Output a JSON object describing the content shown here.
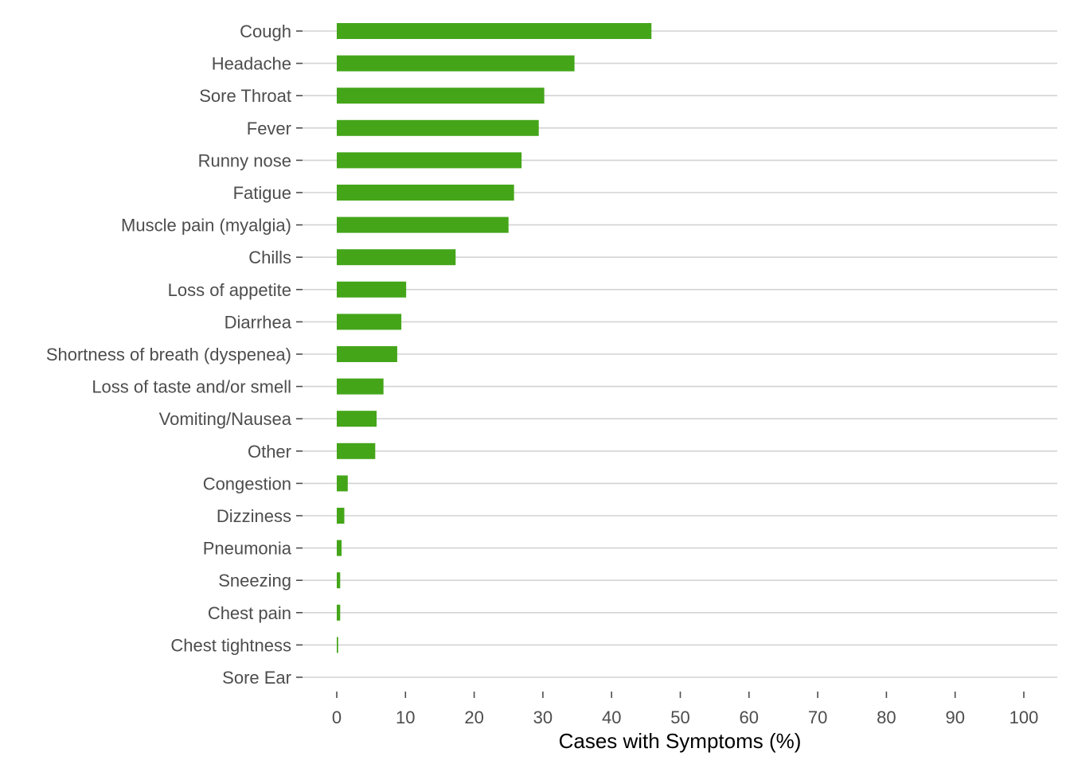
{
  "chart_data": {
    "type": "bar",
    "orientation": "horizontal",
    "categories": [
      "Cough",
      "Headache",
      "Sore Throat",
      "Fever",
      "Runny nose",
      "Fatigue",
      "Muscle pain (myalgia)",
      "Chills",
      "Loss of appetite",
      "Diarrhea",
      "Shortness of breath (dyspenea)",
      "Loss of taste and/or smell",
      "Vomiting/Nausea",
      "Other",
      "Congestion",
      "Dizziness",
      "Pneumonia",
      "Sneezing",
      "Chest pain",
      "Chest tightness",
      "Sore Ear"
    ],
    "values": [
      45.8,
      34.6,
      30.2,
      29.4,
      26.9,
      25.8,
      25.0,
      17.3,
      10.1,
      9.4,
      8.8,
      6.8,
      5.8,
      5.6,
      1.6,
      1.1,
      0.7,
      0.5,
      0.5,
      0.2,
      0.0
    ],
    "xlabel": "Cases with Symptoms (%)",
    "ylabel": "",
    "title": "",
    "xlim": [
      0,
      100
    ],
    "xticks": [
      "0",
      "10",
      "20",
      "30",
      "40",
      "50",
      "60",
      "70",
      "80",
      "90",
      "100"
    ],
    "grid": "horizontal",
    "bar_color": "#44a519",
    "gridline_color": "#d3d3d3",
    "text_color": "#4d4d4d"
  }
}
